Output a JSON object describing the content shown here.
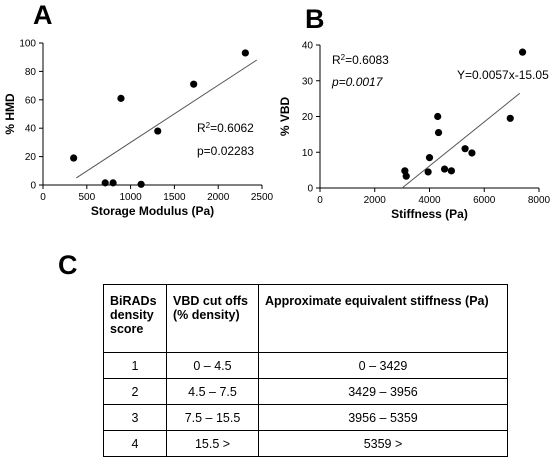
{
  "panels": {
    "a": "A",
    "b": "B",
    "c": "C"
  },
  "chart_data": [
    {
      "type": "scatter",
      "panel": "A",
      "xlabel": "Storage Modulus (Pa)",
      "ylabel": "% HMD",
      "xlim": [
        0,
        2500
      ],
      "ylim": [
        0,
        100
      ],
      "xticks": [
        0,
        500,
        1000,
        1500,
        2000,
        2500
      ],
      "yticks": [
        0,
        20,
        40,
        60,
        80,
        100
      ],
      "points": [
        {
          "x": 350,
          "y": 19
        },
        {
          "x": 710,
          "y": 1.5
        },
        {
          "x": 800,
          "y": 1.5
        },
        {
          "x": 890,
          "y": 61
        },
        {
          "x": 1120,
          "y": 0.5
        },
        {
          "x": 1310,
          "y": 38
        },
        {
          "x": 1720,
          "y": 71
        },
        {
          "x": 2310,
          "y": 93
        }
      ],
      "fit_line": {
        "x1": 380,
        "y1": 5,
        "x2": 2440,
        "y2": 88
      },
      "annotations": {
        "r2_prefix": "R",
        "r2_sup": "2",
        "r2_value": "=0.6062",
        "p_text": "p=0.02283"
      },
      "grid": false,
      "legend": "none"
    },
    {
      "type": "scatter",
      "panel": "B",
      "xlabel": "Stiffness (Pa)",
      "ylabel": "% VBD",
      "xlim": [
        0,
        8000
      ],
      "ylim": [
        0,
        40
      ],
      "xticks": [
        0,
        2000,
        4000,
        6000,
        8000
      ],
      "yticks": [
        0,
        10,
        20,
        30,
        40
      ],
      "points": [
        {
          "x": 3100,
          "y": 4.8
        },
        {
          "x": 3150,
          "y": 3.3
        },
        {
          "x": 3950,
          "y": 4.5
        },
        {
          "x": 4000,
          "y": 8.5
        },
        {
          "x": 4300,
          "y": 20
        },
        {
          "x": 4330,
          "y": 15.5
        },
        {
          "x": 4550,
          "y": 5.3
        },
        {
          "x": 4800,
          "y": 4.8
        },
        {
          "x": 5300,
          "y": 11
        },
        {
          "x": 5550,
          "y": 9.8
        },
        {
          "x": 6950,
          "y": 19.5
        },
        {
          "x": 7400,
          "y": 38
        }
      ],
      "fit_line": {
        "x1": 3000,
        "y1": 0,
        "x2": 7300,
        "y2": 26.5
      },
      "annotations": {
        "r2_prefix": "R",
        "r2_sup": "2",
        "r2_value": "=0.6083",
        "p_text": "p=0.0017",
        "equation": "Y=0.0057x-15.05"
      },
      "grid": false,
      "legend": "none"
    },
    {
      "type": "table",
      "panel": "C",
      "columns": [
        [
          "BiRADs",
          "density",
          "score"
        ],
        [
          "VBD cut offs",
          "(% density)"
        ],
        [
          "Approximate  equivalent stiffness (Pa)"
        ]
      ],
      "rows": [
        [
          "1",
          "0 – 4.5",
          "0 – 3429"
        ],
        [
          "2",
          "4.5 – 7.5",
          "3429 – 3956"
        ],
        [
          "3",
          "7.5 – 15.5",
          "3956 – 5359"
        ],
        [
          "4",
          "15.5 >",
          "5359 >"
        ]
      ]
    }
  ]
}
